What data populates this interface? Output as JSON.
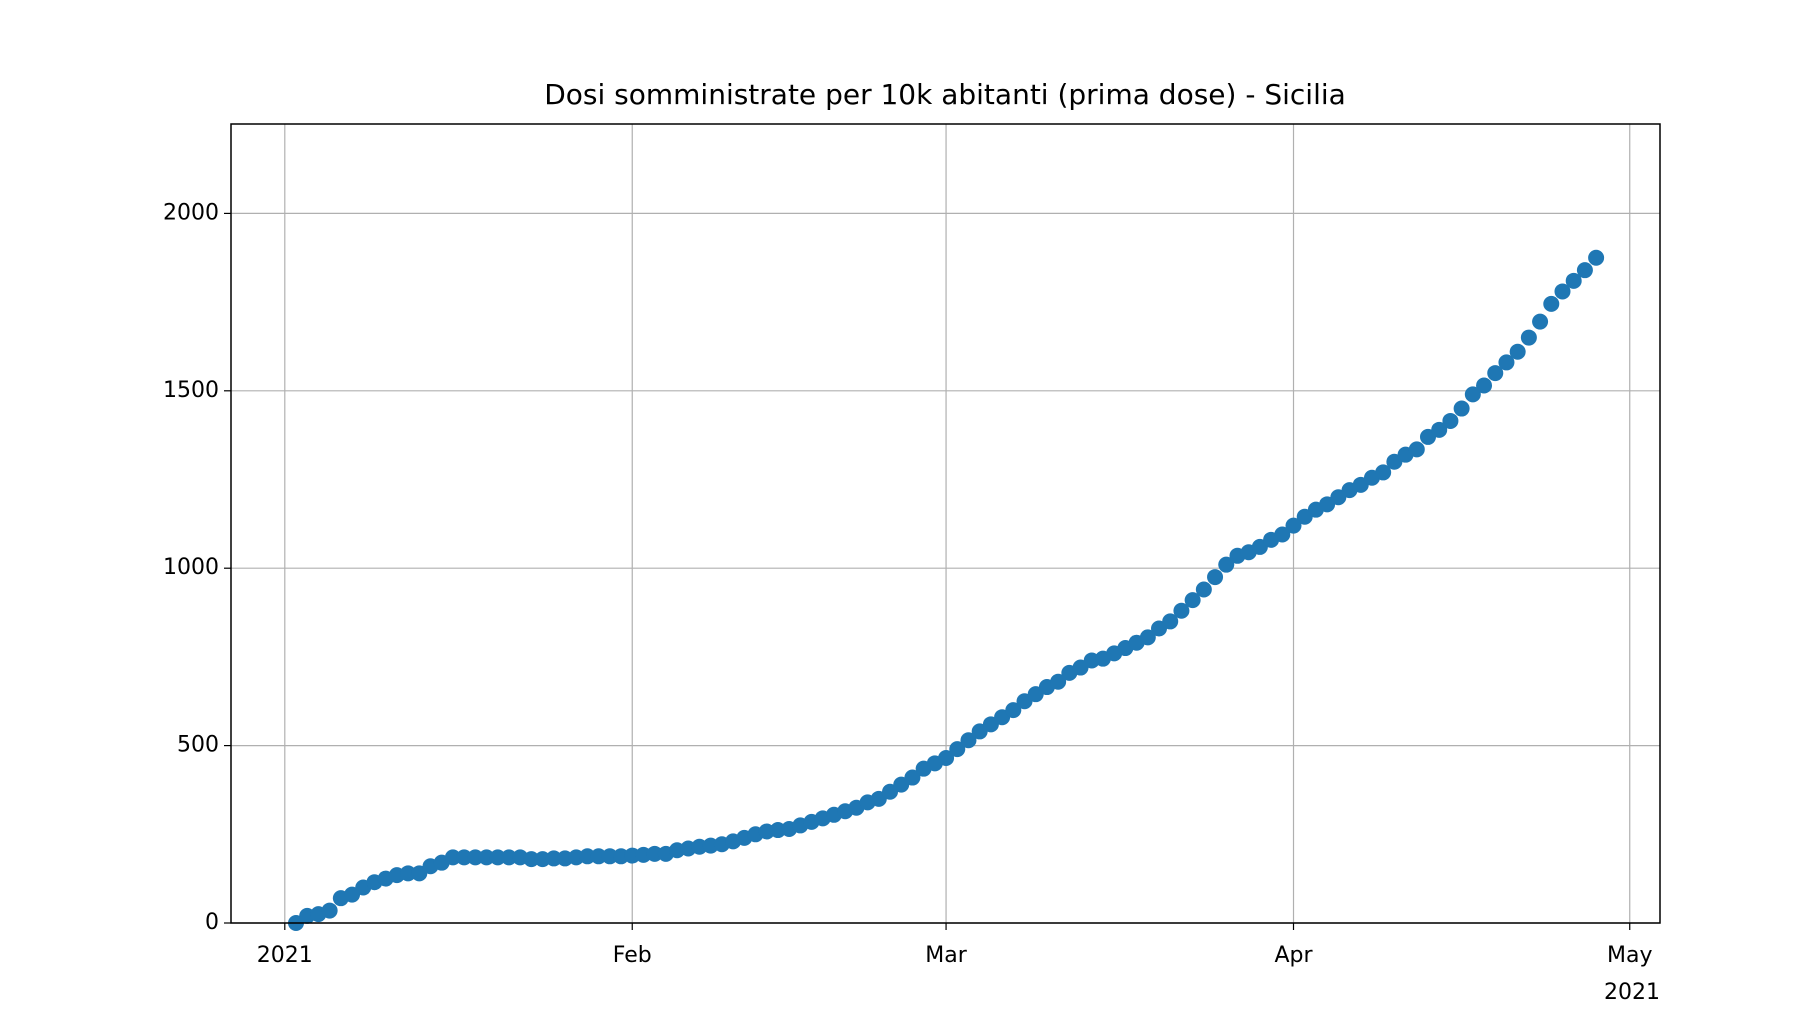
{
  "chart_data": {
    "type": "scatter",
    "title": "Dosi somministrate per 10k abitanti (prima dose) - Sicilia",
    "x": [
      2,
      3,
      4,
      5,
      6,
      7,
      8,
      9,
      10,
      11,
      12,
      13,
      14,
      15,
      16,
      17,
      18,
      19,
      20,
      21,
      22,
      23,
      24,
      25,
      26,
      27,
      28,
      29,
      30,
      31,
      32,
      33,
      34,
      35,
      36,
      37,
      38,
      39,
      40,
      41,
      42,
      43,
      44,
      45,
      46,
      47,
      48,
      49,
      50,
      51,
      52,
      53,
      54,
      55,
      56,
      57,
      58,
      59,
      60,
      61,
      62,
      63,
      64,
      65,
      66,
      67,
      68,
      69,
      70,
      71,
      72,
      73,
      74,
      75,
      76,
      77,
      78,
      79,
      80,
      81,
      82,
      83,
      84,
      85,
      86,
      87,
      88,
      89,
      90,
      91,
      92,
      93,
      94,
      95,
      96,
      97,
      98,
      99,
      100,
      101,
      102,
      103,
      104,
      105,
      106,
      107,
      108,
      109,
      110,
      111,
      112,
      113,
      114,
      115,
      116,
      117,
      118
    ],
    "series": [
      {
        "color": "#1f77b4",
        "values": [
          0,
          20,
          25,
          35,
          70,
          80,
          100,
          115,
          125,
          135,
          140,
          140,
          160,
          170,
          185,
          185,
          185,
          185,
          185,
          185,
          185,
          180,
          180,
          182,
          182,
          185,
          188,
          188,
          188,
          188,
          190,
          192,
          195,
          195,
          205,
          210,
          215,
          218,
          222,
          230,
          240,
          250,
          258,
          262,
          265,
          275,
          285,
          295,
          305,
          315,
          325,
          340,
          350,
          370,
          390,
          410,
          435,
          450,
          465,
          490,
          515,
          540,
          560,
          580,
          600,
          625,
          645,
          665,
          680,
          705,
          720,
          740,
          745,
          760,
          775,
          790,
          805,
          830,
          850,
          880,
          910,
          940,
          975,
          1010,
          1035,
          1045,
          1060,
          1080,
          1095,
          1120,
          1145,
          1165,
          1180,
          1200,
          1220,
          1235,
          1255,
          1270,
          1300,
          1320,
          1335,
          1370,
          1390,
          1415,
          1450,
          1490,
          1515,
          1550,
          1580,
          1610,
          1650,
          1695,
          1745,
          1780,
          1810,
          1840,
          1875
        ]
      }
    ],
    "xlim": [
      -3.8,
      123.7
    ],
    "xticks": [
      {
        "value": 1,
        "label": "2021"
      },
      {
        "value": 32,
        "label": "Feb"
      },
      {
        "value": 60,
        "label": "Mar"
      },
      {
        "value": 91,
        "label": "Apr"
      },
      {
        "value": 121,
        "label": "May"
      }
    ],
    "x_offset_label": "2021",
    "ylim": [
      0,
      2252
    ],
    "yticks": [
      0,
      500,
      1000,
      1500,
      2000
    ],
    "grid": true
  }
}
